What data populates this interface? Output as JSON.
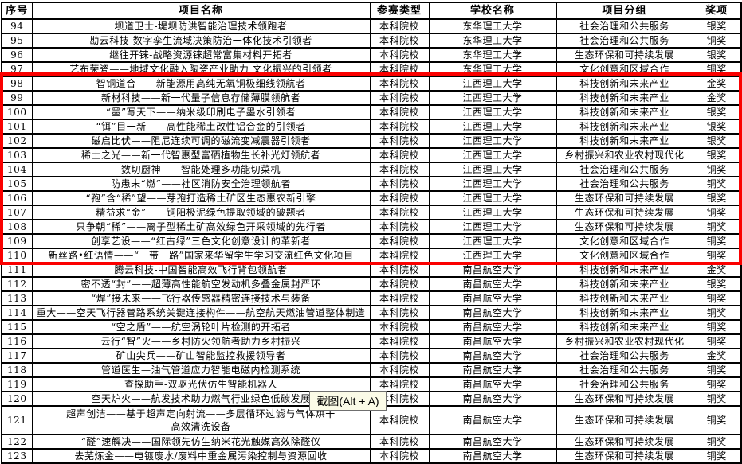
{
  "page": {
    "background": "#ffffff"
  },
  "table": {
    "headers": [
      "序号",
      "项目名称",
      "参赛类型",
      "学校名称",
      "项目分组",
      "奖项"
    ],
    "rows": [
      {
        "no": "94",
        "name": "坝道卫士-堤坝防洪智能治理技术领跑者",
        "type": "本科院校",
        "school": "东华理工大学",
        "group": "社会治理和公共服务",
        "award": "银奖"
      },
      {
        "no": "95",
        "name": "勘云科技-数字孪生流域决策防治一体化技术引领者",
        "type": "本科院校",
        "school": "东华理工大学",
        "group": "社会治理和公共服务",
        "award": "铜奖"
      },
      {
        "no": "96",
        "name": "继往开铼-战略资源铼超常富集材料开拓者",
        "type": "本科院校",
        "school": "东华理工大学",
        "group": "生态环保和可持续发展",
        "award": "银奖"
      },
      {
        "no": "97",
        "name": "艺布荣瓷——地域文化融入陶瓷产业助力 文化振兴的引领者",
        "type": "本科院校",
        "school": "东华理工大学",
        "group": "文化创意和区域合作",
        "award": "铜奖"
      },
      {
        "no": "98",
        "name": "智铜道合——新能源用高纯无氧铜极细线领航者",
        "type": "本科院校",
        "school": "江西理工大学",
        "group": "科技创新和未来产业",
        "award": "金奖"
      },
      {
        "no": "99",
        "name": "新材科技——新一代量子信息存储薄膜领航者",
        "type": "本科院校",
        "school": "江西理工大学",
        "group": "科技创新和未来产业",
        "award": "金奖"
      },
      {
        "no": "100",
        "name": "“墨”写天下——纳米级印刷电子墨水引领者",
        "type": "本科院校",
        "school": "江西理工大学",
        "group": "科技创新和未来产业",
        "award": "银奖"
      },
      {
        "no": "101",
        "name": "“铒”目一新——高性能稀土改性铝合金的引领者",
        "type": "本科院校",
        "school": "江西理工大学",
        "group": "科技创新和未来产业",
        "award": "银奖"
      },
      {
        "no": "102",
        "name": "磁启比伏——阻尼连续可调的磁流变减震器引领者",
        "type": "本科院校",
        "school": "江西理工大学",
        "group": "科技创新和未来产业",
        "award": "银奖"
      },
      {
        "no": "103",
        "name": "稀土之光——新一代智惠型富硒植物生长补光灯领航者",
        "type": "本科院校",
        "school": "江西理工大学",
        "group": "乡村振兴和农业农村现代化",
        "award": "银奖"
      },
      {
        "no": "104",
        "name": "数切厨神——智能处理多功能切菜机",
        "type": "本科院校",
        "school": "江西理工大学",
        "group": "社会治理和公共服务",
        "award": "铜奖"
      },
      {
        "no": "105",
        "name": "防患未“燃”——社区消防安全治理领航者",
        "type": "本科院校",
        "school": "江西理工大学",
        "group": "社会治理和公共服务",
        "award": "铜奖"
      },
      {
        "no": "106",
        "name": "“孢”含“稀”望——芽孢打造稀土矿区生态惠农新引擎",
        "type": "本科院校",
        "school": "江西理工大学",
        "group": "生态环保和可持续发展",
        "award": "银奖"
      },
      {
        "no": "107",
        "name": "精益求“金”——铜阳极泥绿色提取领域的破题者",
        "type": "本科院校",
        "school": "江西理工大学",
        "group": "生态环保和可持续发展",
        "award": "铜奖"
      },
      {
        "no": "108",
        "name": "只争朝“稀”——离子型稀土矿高效绿色开采领域的先行者",
        "type": "本科院校",
        "school": "江西理工大学",
        "group": "生态环保和可持续发展",
        "award": "铜奖"
      },
      {
        "no": "109",
        "name": "创享艺设——“红古绿”三色文化创意设计的革新者",
        "type": "本科院校",
        "school": "江西理工大学",
        "group": "文化创意和区域合作",
        "award": "铜奖"
      },
      {
        "no": "110",
        "name": "新丝路•红语情——“一带一路”国家来华留学生学习交流红色文化项目",
        "type": "本科院校",
        "school": "江西理工大学",
        "group": "文化创意和区域合作",
        "award": "铜奖"
      },
      {
        "no": "111",
        "name": "腾云科技-中国智能高效飞行背包领航者",
        "type": "本科院校",
        "school": "南昌航空大学",
        "group": "科技创新和未来产业",
        "award": "金奖"
      },
      {
        "no": "112",
        "name": "密不透“封”——超薄高性能航空发动机多叠金属封严环",
        "type": "本科院校",
        "school": "南昌航空大学",
        "group": "科技创新和未来产业",
        "award": "银奖"
      },
      {
        "no": "113",
        "name": "“焊”接未来——飞行器传感器精密连接技术与装备",
        "type": "本科院校",
        "school": "南昌航空大学",
        "group": "科技创新和未来产业",
        "award": "铜奖"
      },
      {
        "no": "114",
        "name": "重大——空天飞行器管路系统关键连接构件——航空航天燃油管道整体制造",
        "type": "本科院校",
        "school": "南昌航空大学",
        "group": "科技创新和未来产业",
        "award": "铜奖"
      },
      {
        "no": "115",
        "name": "“空之盾”——航空涡轮叶片检测的开拓者",
        "type": "本科院校",
        "school": "南昌航空大学",
        "group": "科技创新和未来产业",
        "award": "铜奖"
      },
      {
        "no": "116",
        "name": "云行“智”火——乡村防火领航者助力乡村振兴",
        "type": "本科院校",
        "school": "南昌航空大学",
        "group": "乡村振兴和农业农村现代化",
        "award": "铜奖"
      },
      {
        "no": "117",
        "name": "矿山尖兵——矿山智能监控救援领导者",
        "type": "本科院校",
        "school": "南昌航空大学",
        "group": "社会治理和公共服务",
        "award": "金奖"
      },
      {
        "no": "118",
        "name": "管道医生—油气管道应力智能电磁内检测系统",
        "type": "本科院校",
        "school": "南昌航空大学",
        "group": "社会治理和公共服务",
        "award": "铜奖"
      },
      {
        "no": "119",
        "name": "查探助手-双驱光伏仿生智能机器人",
        "type": "本科院校",
        "school": "南昌航空大学",
        "group": "社会治理和公共服务",
        "award": "铜奖"
      },
      {
        "no": "120",
        "name": "空天炉火——航发技术助力燃气行业绿色低碳发展",
        "type": "本科院校",
        "school": "南昌航空大学",
        "group": "生态环保和可持续发展",
        "award": "铜奖"
      },
      {
        "no": "121",
        "name": "超声创洁——基于超声定向射流——多层循环过滤与气体烘干\n高效清洗设备",
        "type": "本科院校",
        "school": "南昌航空大学",
        "group": "生态环保和可持续发展",
        "award": "铜奖"
      },
      {
        "no": "122",
        "name": "“醛”速解决——国际领先仿生纳米花光触媒高效除醛仪",
        "type": "本科院校",
        "school": "南昌航空大学",
        "group": "生态环保和可持续发展",
        "award": "铜奖"
      },
      {
        "no": "123",
        "name": "去芜炼金——电镀废水/废料中重金属污染控制与资源回收",
        "type": "本科院校",
        "school": "南昌航空大学",
        "group": "生态环保和可持续发展",
        "award": "铜奖"
      }
    ]
  },
  "highlight": {
    "color": "#fb0000",
    "from_no": "98",
    "to_no": "110"
  },
  "tooltip": {
    "text": "截图(Alt + A)",
    "background": "#fbfbe7",
    "border": "#6f6f6f"
  }
}
